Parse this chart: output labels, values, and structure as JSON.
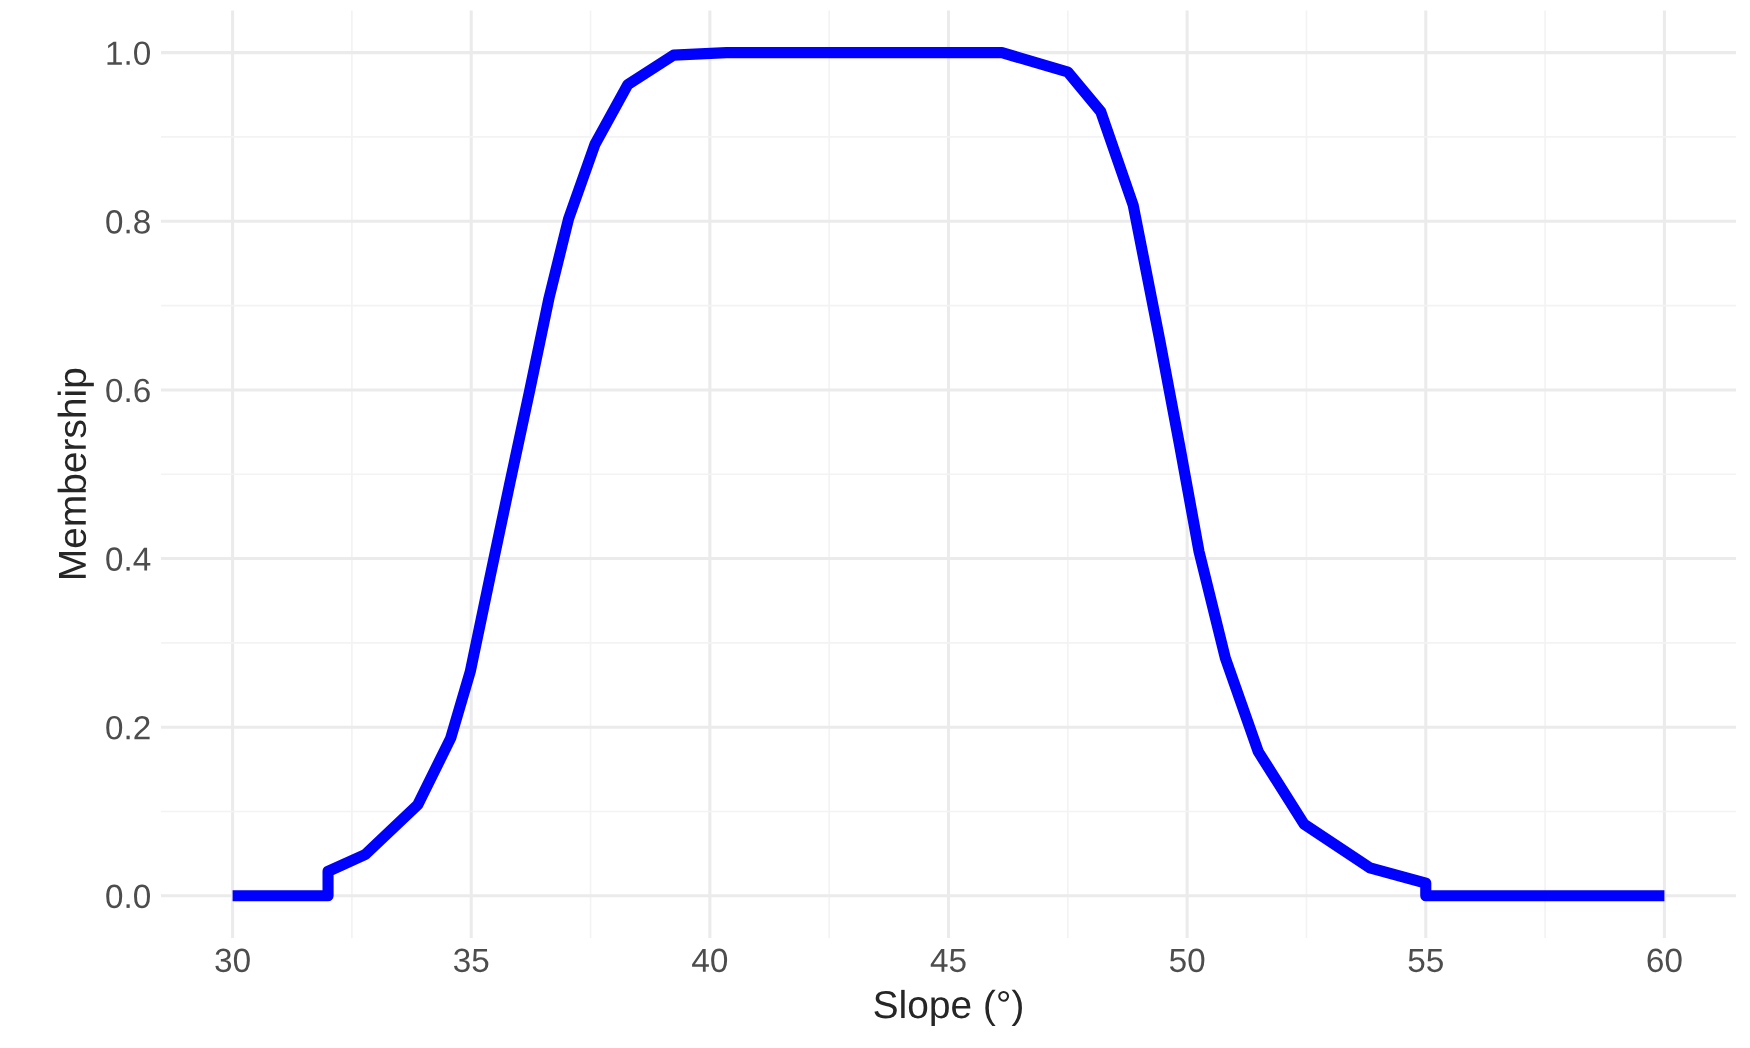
{
  "chart_data": {
    "type": "line",
    "xlabel": "Slope (°)",
    "ylabel": "Membership",
    "x": [
      30,
      32,
      32,
      32.78,
      33.88,
      34.57,
      34.98,
      35.39,
      35.8,
      36.22,
      36.63,
      37.04,
      37.59,
      38.28,
      39.24,
      40.35,
      43.37,
      46.12,
      47.5,
      48.19,
      48.87,
      49.42,
      49.84,
      50.25,
      50.8,
      51.49,
      52.45,
      53.83,
      55,
      55,
      60
    ],
    "series": [
      {
        "color": "#0000ff",
        "values": [
          0,
          0,
          0.029,
          0.049,
          0.108,
          0.187,
          0.266,
          0.377,
          0.487,
          0.598,
          0.709,
          0.803,
          0.891,
          0.962,
          0.997,
          1.0,
          1.0,
          1.0,
          0.977,
          0.93,
          0.819,
          0.661,
          0.535,
          0.408,
          0.282,
          0.171,
          0.085,
          0.033,
          0.015,
          0,
          0
        ]
      }
    ],
    "xlim": [
      28.5,
      61.5
    ],
    "ylim": [
      -0.05,
      1.05
    ],
    "xticks": [
      30,
      35,
      40,
      45,
      50,
      55,
      60
    ],
    "yticks": [
      {
        "value": 0,
        "label": "0.0"
      },
      {
        "value": 0.2,
        "label": "0.2"
      },
      {
        "value": 0.4,
        "label": "0.4"
      },
      {
        "value": 0.6,
        "label": "0.6"
      },
      {
        "value": 0.8,
        "label": "0.8"
      },
      {
        "value": 1.0,
        "label": "1.0"
      }
    ],
    "grid": true,
    "marker": "none",
    "line_style": "solid"
  }
}
